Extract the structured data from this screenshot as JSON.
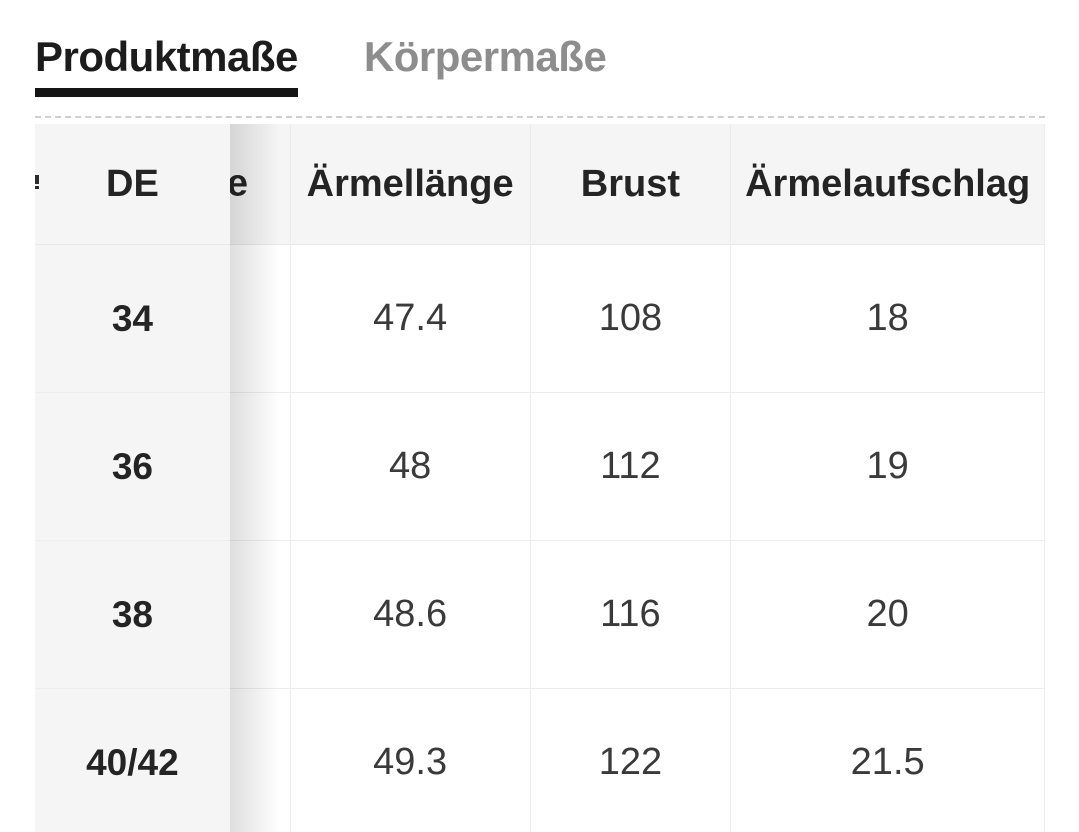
{
  "tabs": [
    {
      "label": "Produktmaße",
      "active": true
    },
    {
      "label": "Körpermaße",
      "active": false
    }
  ],
  "size_table": {
    "columns": [
      "DE",
      "Ärmellänge",
      "Brust",
      "Ärmelaufschlag"
    ],
    "hidden_column_fragment": "e",
    "rows": [
      {
        "size": "34",
        "values": [
          "47.4",
          "108",
          "18"
        ]
      },
      {
        "size": "36",
        "values": [
          "48",
          "112",
          "19"
        ]
      },
      {
        "size": "38",
        "values": [
          "48.6",
          "116",
          "20"
        ]
      },
      {
        "size": "40/42",
        "values": [
          "49.3",
          "122",
          "21.5"
        ]
      }
    ]
  },
  "colors": {
    "tab_active": "#1c1c1c",
    "tab_inactive": "#8d8d8d",
    "tab_underline": "#151515",
    "header_background": "#f5f5f5",
    "sticky_column_background": "#f5f5f5",
    "cell_text": "#3a3a3a",
    "header_text": "#242424",
    "grid_border": "#ececec"
  }
}
